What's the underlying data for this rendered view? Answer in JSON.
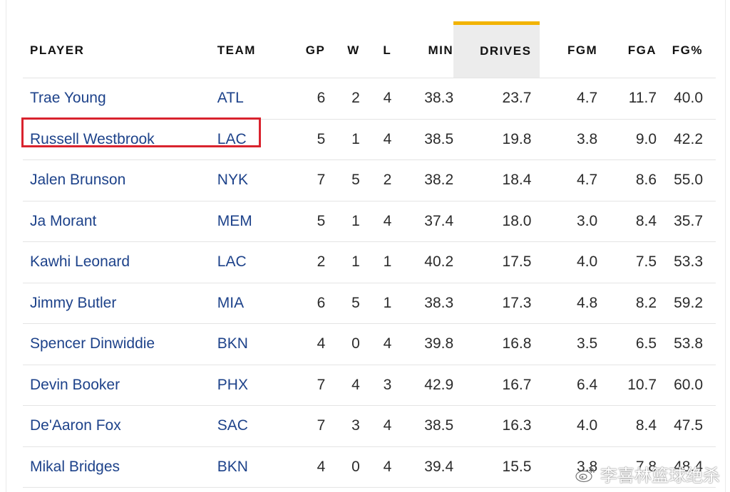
{
  "table": {
    "headers": [
      "PLAYER",
      "TEAM",
      "GP",
      "W",
      "L",
      "MIN",
      "DRIVES",
      "FGM",
      "FGA",
      "FG%"
    ],
    "sorted_column": "DRIVES",
    "rows": [
      [
        "Trae Young",
        "ATL",
        "6",
        "2",
        "4",
        "38.3",
        "23.7",
        "4.7",
        "11.7",
        "40.0"
      ],
      [
        "Russell Westbrook",
        "LAC",
        "5",
        "1",
        "4",
        "38.5",
        "19.8",
        "3.8",
        "9.0",
        "42.2"
      ],
      [
        "Jalen Brunson",
        "NYK",
        "7",
        "5",
        "2",
        "38.2",
        "18.4",
        "4.7",
        "8.6",
        "55.0"
      ],
      [
        "Ja Morant",
        "MEM",
        "5",
        "1",
        "4",
        "37.4",
        "18.0",
        "3.0",
        "8.4",
        "35.7"
      ],
      [
        "Kawhi Leonard",
        "LAC",
        "2",
        "1",
        "1",
        "40.2",
        "17.5",
        "4.0",
        "7.5",
        "53.3"
      ],
      [
        "Jimmy Butler",
        "MIA",
        "6",
        "5",
        "1",
        "38.3",
        "17.3",
        "4.8",
        "8.2",
        "59.2"
      ],
      [
        "Spencer Dinwiddie",
        "BKN",
        "4",
        "0",
        "4",
        "39.8",
        "16.8",
        "3.5",
        "6.5",
        "53.8"
      ],
      [
        "Devin Booker",
        "PHX",
        "7",
        "4",
        "3",
        "42.9",
        "16.7",
        "6.4",
        "10.7",
        "60.0"
      ],
      [
        "De'Aaron Fox",
        "SAC",
        "7",
        "3",
        "4",
        "38.5",
        "16.3",
        "4.0",
        "8.4",
        "47.5"
      ],
      [
        "Mikal Bridges",
        "BKN",
        "4",
        "0",
        "4",
        "39.4",
        "15.5",
        "3.8",
        "7.8",
        "48.4"
      ]
    ]
  },
  "highlight": {
    "row_index": 1,
    "color": "#d9232e"
  },
  "colors": {
    "link": "#1d428a",
    "sort_accent": "#f2b300",
    "sorted_bg": "#ececec"
  },
  "watermark": {
    "icon": "weibo-icon",
    "text": "李喜林篮球绝杀"
  }
}
